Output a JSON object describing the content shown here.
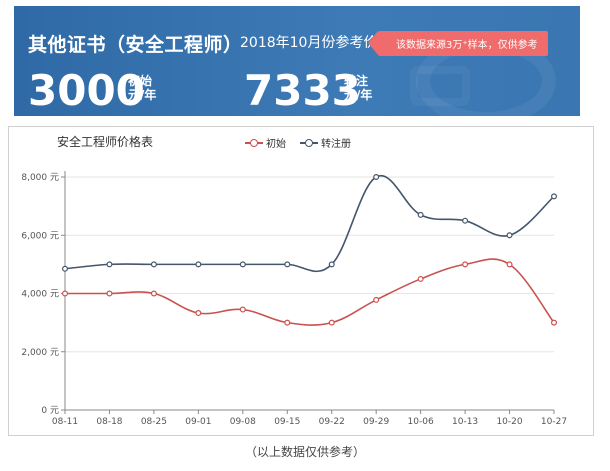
{
  "banner": {
    "title": "其他证书（安全工程师）",
    "date": "2018年10月份参考价",
    "note": "该数据来源3万⁺样本，仅供参考",
    "initial": {
      "value": "3000",
      "label1": "初始",
      "label2": "元/年"
    },
    "transfer": {
      "value": "7333",
      "label1": "转注",
      "label2": "元/年"
    }
  },
  "chart_data": {
    "type": "line",
    "title": "安全工程师价格表",
    "categories": [
      "08-11",
      "08-18",
      "08-25",
      "09-01",
      "09-08",
      "09-15",
      "09-22",
      "09-29",
      "10-06",
      "10-13",
      "10-20",
      "10-27"
    ],
    "series": [
      {
        "name": "初始",
        "color": "#c9514f",
        "values": [
          4000,
          4000,
          4000,
          3330,
          3450,
          3000,
          3000,
          3780,
          4500,
          5000,
          5000,
          3000
        ]
      },
      {
        "name": "转注册",
        "color": "#44566a",
        "values": [
          4850,
          5000,
          5000,
          5000,
          5000,
          5000,
          5000,
          8000,
          6700,
          6500,
          6000,
          7333
        ]
      }
    ],
    "ylim": [
      0,
      8000
    ],
    "yticks": [
      0,
      2000,
      4000,
      6000,
      8000
    ],
    "ytick_labels": [
      "0 元",
      "2,000 元",
      "4,000 元",
      "6,000 元",
      "8,000 元"
    ],
    "grid": true,
    "legend_position": "top"
  },
  "footnote": "（以上数据仅供参考）"
}
